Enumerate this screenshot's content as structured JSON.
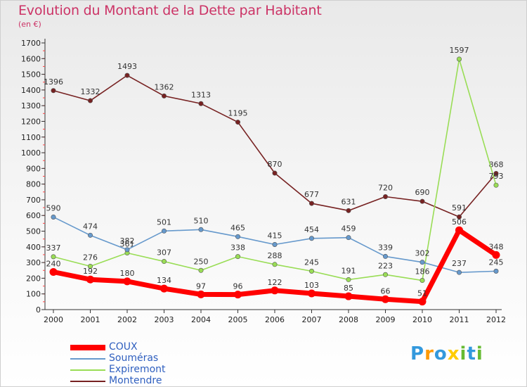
{
  "title": "Evolution du Montant de la Dette par Habitant",
  "subtitle": "(en €)",
  "chart_data": {
    "type": "line",
    "title": "Evolution du Montant de la Dette par Habitant",
    "ylabel": "(en €)",
    "xlabel": "",
    "ylim": [
      0,
      1700
    ],
    "yticks": [
      0,
      100,
      200,
      300,
      400,
      500,
      600,
      700,
      800,
      900,
      1000,
      1100,
      1200,
      1300,
      1400,
      1500,
      1600,
      1700
    ],
    "grid": false,
    "legend": "bottom-left",
    "x": [
      "2000",
      "2001",
      "2002",
      "2003",
      "2004",
      "2005",
      "2006",
      "2007",
      "2008",
      "2009",
      "2010",
      "2011",
      "2012"
    ],
    "series": [
      {
        "name": "COUX",
        "color": "#ff0000",
        "values": [
          240,
          192,
          180,
          134,
          97,
          96,
          122,
          103,
          85,
          66,
          51,
          506,
          348
        ]
      },
      {
        "name": "Souméras",
        "color": "#6699cc",
        "values": [
          590,
          474,
          382,
          501,
          510,
          465,
          415,
          454,
          459,
          339,
          302,
          237,
          245
        ]
      },
      {
        "name": "Expiremont",
        "color": "#99dd55",
        "values": [
          337,
          276,
          361,
          307,
          250,
          338,
          288,
          245,
          191,
          223,
          186,
          1597,
          793
        ]
      },
      {
        "name": "Montendre",
        "color": "#772222",
        "values": [
          1396,
          1332,
          1493,
          1362,
          1313,
          1195,
          870,
          677,
          631,
          720,
          690,
          591,
          868
        ]
      }
    ]
  },
  "logo": {
    "letters": [
      "P",
      "r",
      "o",
      "x",
      "i",
      "t",
      "i"
    ],
    "colors": [
      "#3399dd",
      "#ff9900",
      "#3399dd",
      "#ffcc00",
      "#66bb33",
      "#3399dd",
      "#66bb33"
    ]
  }
}
